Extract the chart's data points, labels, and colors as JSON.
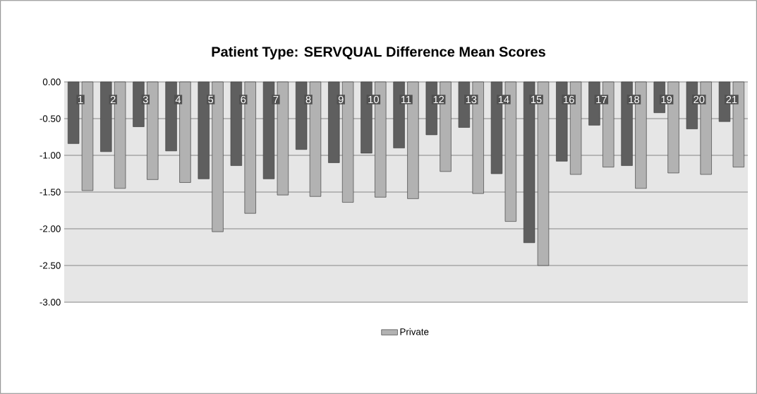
{
  "chart_data": {
    "type": "bar",
    "title": "Patient Type: SERVQUAL Difference Mean Scores",
    "categories": [
      "1",
      "2",
      "3",
      "4",
      "5",
      "6",
      "7",
      "8",
      "9",
      "10",
      "11",
      "12",
      "13",
      "14",
      "15",
      "16",
      "17",
      "18",
      "19",
      "20",
      "21"
    ],
    "series": [
      {
        "color": "#5f5f5f",
        "values": [
          -0.84,
          -0.95,
          -0.61,
          -0.94,
          -1.32,
          -1.14,
          -1.32,
          -0.92,
          -1.1,
          -0.97,
          -0.9,
          -0.72,
          -0.62,
          -1.25,
          -2.19,
          -1.08,
          -0.59,
          -1.14,
          -0.42,
          -0.64,
          -0.54
        ]
      },
      {
        "name": "Private",
        "color": "#b2b2b2",
        "values": [
          -1.48,
          -1.45,
          -1.33,
          -1.37,
          -2.04,
          -1.79,
          -1.54,
          -1.56,
          -1.64,
          -1.57,
          -1.59,
          -1.22,
          -1.52,
          -1.9,
          -2.5,
          -1.26,
          -1.16,
          -1.45,
          -1.24,
          -1.26,
          -1.16
        ]
      }
    ],
    "ylim": [
      -3,
      0
    ],
    "yticks": [
      {
        "value": 0,
        "label": "0.00"
      },
      {
        "value": -0.5,
        "label": "-0.50"
      },
      {
        "value": -1,
        "label": "-1.00"
      },
      {
        "value": -1.5,
        "label": "-1.50"
      },
      {
        "value": -2,
        "label": "-2.00"
      },
      {
        "value": -2.5,
        "label": "-2.50"
      },
      {
        "value": -3,
        "label": "-3.00"
      }
    ],
    "grid": "y",
    "legend": "bottom"
  }
}
